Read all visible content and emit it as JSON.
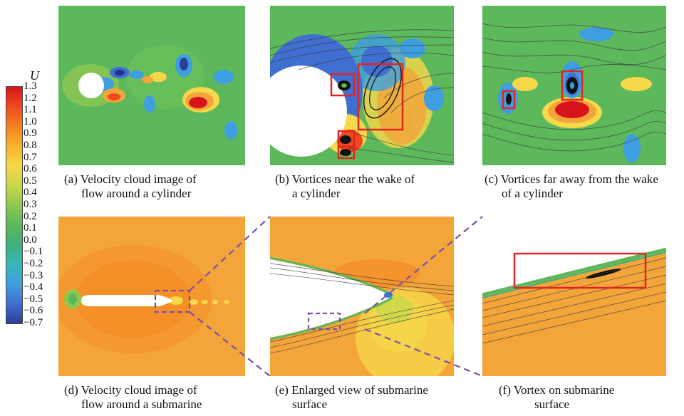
{
  "colorbar": {
    "title": "U",
    "labels": [
      "1.3",
      "1.2",
      "1.1",
      "1.0",
      "0.9",
      "0.8",
      "0.7",
      "0.6",
      "0.5",
      "0.4",
      "0.3",
      "0.2",
      "0.1",
      "0.0",
      "−0.1",
      "−0.2",
      "−0.3",
      "−0.4",
      "−0.5",
      "−0.6",
      "−0.7"
    ],
    "gradient": [
      "#d8141b",
      "#ef4a1f",
      "#f5811f",
      "#f8b32b",
      "#f7d84a",
      "#c8d84a",
      "#8fc84f",
      "#5cb75b",
      "#3fb07a",
      "#38b7b7",
      "#3f9ee0",
      "#3f6fd0",
      "#2a3f9a"
    ]
  },
  "palette": {
    "green": "#5cb85a",
    "orange": "#f4a53a",
    "red_box": "#e02424",
    "dashed_purple": "#7b4fa6"
  },
  "captions": {
    "a": {
      "line1": "(a) Velocity cloud image of",
      "line2": "flow around a cylinder"
    },
    "b": {
      "line1": "(b) Vortices near the wake of",
      "line2": "a cylinder"
    },
    "c": {
      "line1": "(c) Vortices far away from the wake",
      "line2": "of a cylinder"
    },
    "d": {
      "line1": "(d) Velocity cloud image of",
      "line2": "flow around a submarine"
    },
    "e": {
      "line1": "(e) Enlarged view of submarine",
      "line2": "surface"
    },
    "f": {
      "line1": "(f) Vortex on submarine",
      "line2": "surface"
    }
  }
}
